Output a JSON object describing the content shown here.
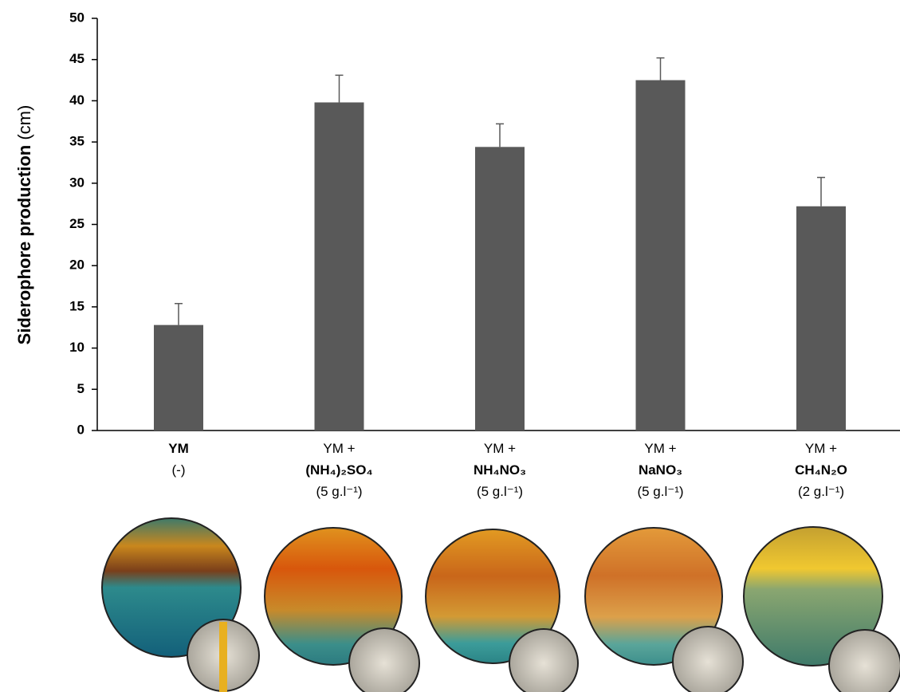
{
  "chart_data": {
    "type": "bar",
    "ylabel": [
      "Siderophore production",
      "(cm)"
    ],
    "categories": [
      [
        "YM",
        "(-)"
      ],
      [
        "YM +",
        "(NH₄)₂SO₄",
        "(5 g.l⁻¹)"
      ],
      [
        "YM +",
        "NH₄NO₃",
        "(5 g.l⁻¹)"
      ],
      [
        "YM +",
        "NaNO₃",
        "(5 g.l⁻¹)"
      ],
      [
        "YM +",
        "CH₄N₂O",
        "(2 g.l⁻¹)"
      ]
    ],
    "values": [
      12.8,
      39.8,
      34.4,
      42.5,
      27.2
    ],
    "errors": [
      2.6,
      3.3,
      2.8,
      2.7,
      3.5
    ],
    "color": "#595959",
    "ylim": [
      0,
      50
    ],
    "yticks": [
      0,
      5,
      10,
      15,
      20,
      25,
      30,
      35,
      40,
      45,
      50
    ]
  }
}
